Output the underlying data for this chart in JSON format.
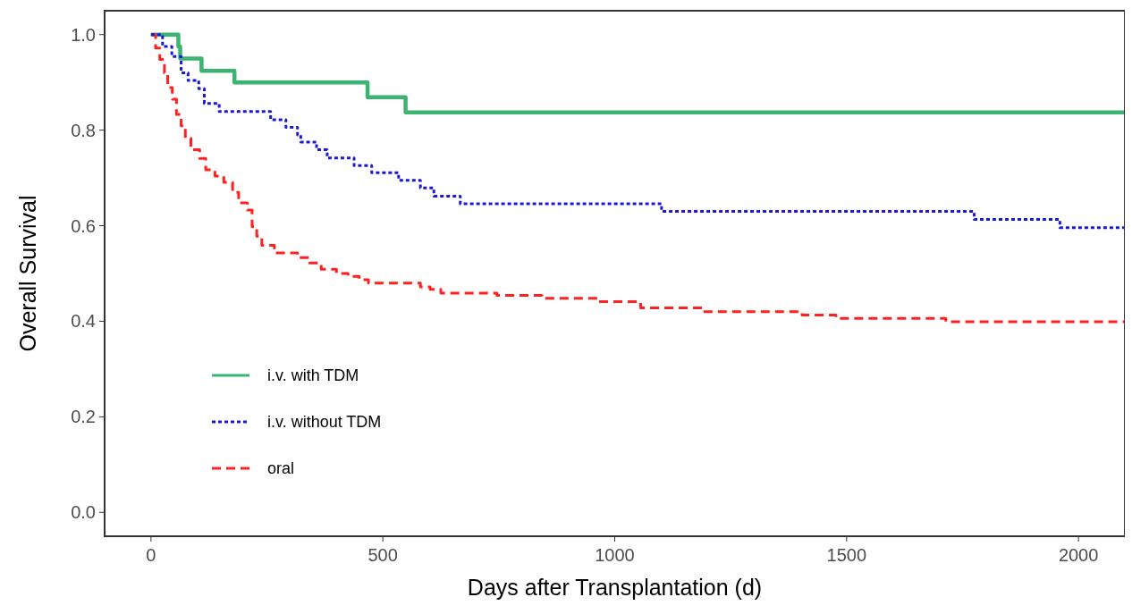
{
  "chart_data": {
    "type": "step",
    "xlabel": "Days after Transplantation (d)",
    "ylabel": "Overall Survival",
    "xlim": [
      -100,
      2100
    ],
    "ylim": [
      -0.05,
      1.05
    ],
    "xticks": [
      0,
      500,
      1000,
      1500,
      2000
    ],
    "yticks": [
      {
        "value": 0,
        "label": "0.0"
      },
      0.2,
      0.4,
      0.6,
      0.8,
      {
        "value": 1,
        "label": "1.0"
      }
    ],
    "grid": false,
    "legend": "bottom left",
    "series": [
      {
        "name": "i.v. with TDM",
        "color": "#3cb371",
        "line_style": "solid",
        "x": [
          0,
          59,
          63,
          109,
          180,
          467,
          549,
          2100
        ],
        "values": [
          1.0,
          0.975,
          0.95,
          0.924,
          0.9,
          0.869,
          0.837,
          0.837
        ]
      },
      {
        "name": "i.v. without TDM",
        "color": "#1a1ad6",
        "line_style": "dotted",
        "x": [
          0,
          25,
          45,
          65,
          80,
          103,
          115,
          147,
          258,
          291,
          316,
          323,
          357,
          380,
          438,
          476,
          534,
          581,
          610,
          667,
          1101,
          1775,
          1960,
          2100
        ],
        "values": [
          1.0,
          0.975,
          0.954,
          0.92,
          0.904,
          0.887,
          0.856,
          0.839,
          0.822,
          0.806,
          0.79,
          0.775,
          0.759,
          0.742,
          0.726,
          0.711,
          0.695,
          0.679,
          0.662,
          0.646,
          0.63,
          0.613,
          0.596,
          0.596
        ]
      },
      {
        "name": "oral",
        "color": "#ff2020",
        "line_style": "dashed",
        "x": [
          0,
          10,
          19,
          29,
          36,
          46,
          55,
          65,
          74,
          86,
          105,
          118,
          138,
          157,
          176,
          189,
          208,
          218,
          228,
          239,
          266,
          316,
          342,
          367,
          400,
          425,
          449,
          469,
          581,
          602,
          625,
          746,
          843,
          966,
          1056,
          1190,
          1404,
          1477,
          1714,
          2100
        ],
        "values": [
          1.0,
          0.972,
          0.948,
          0.92,
          0.889,
          0.865,
          0.833,
          0.809,
          0.783,
          0.759,
          0.741,
          0.717,
          0.704,
          0.691,
          0.67,
          0.648,
          0.633,
          0.598,
          0.578,
          0.559,
          0.543,
          0.533,
          0.522,
          0.509,
          0.5,
          0.494,
          0.487,
          0.48,
          0.472,
          0.467,
          0.459,
          0.454,
          0.448,
          0.441,
          0.428,
          0.42,
          0.413,
          0.406,
          0.399,
          0.399
        ]
      }
    ]
  }
}
